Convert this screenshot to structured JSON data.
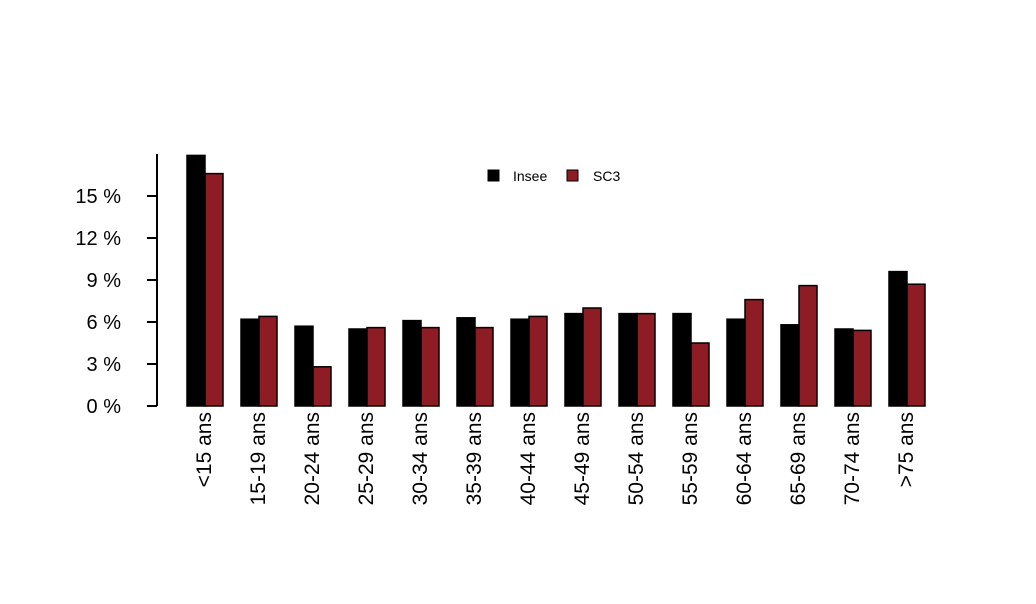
{
  "chart_data": {
    "type": "bar",
    "title": "",
    "xlabel": "",
    "ylabel": "",
    "ylim": [
      0,
      18
    ],
    "y_ticks": [
      0,
      3,
      6,
      9,
      12,
      15
    ],
    "y_tick_labels": [
      "0 %",
      "3 %",
      "6 %",
      "9 %",
      "12 %",
      "15 %"
    ],
    "categories": [
      "<15 ans",
      "15-19 ans",
      "20-24 ans",
      "25-29 ans",
      "30-34 ans",
      "35-39 ans",
      "40-44 ans",
      "45-49 ans",
      "50-54 ans",
      "55-59 ans",
      "60-64 ans",
      "65-69 ans",
      "70-74 ans",
      ">75 ans"
    ],
    "series": [
      {
        "name": "Insee",
        "color": "#000000",
        "values": [
          17.9,
          6.2,
          5.7,
          5.5,
          6.1,
          6.3,
          6.2,
          6.6,
          6.6,
          6.6,
          6.2,
          5.8,
          5.5,
          9.6
        ]
      },
      {
        "name": "SC3",
        "color": "#8e1c24",
        "values": [
          16.6,
          6.4,
          2.8,
          5.6,
          5.6,
          5.6,
          6.4,
          7.0,
          6.6,
          4.5,
          7.6,
          8.6,
          5.4,
          8.7
        ]
      }
    ],
    "legend_position": "top-center",
    "grid": false
  }
}
